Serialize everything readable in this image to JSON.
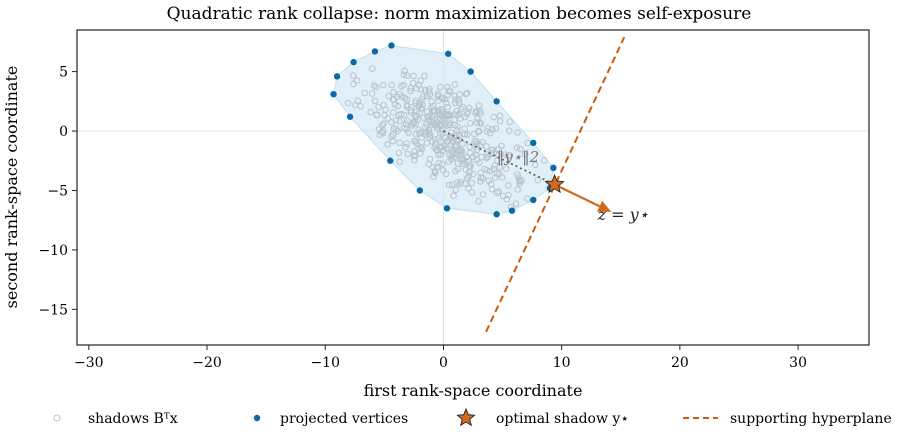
{
  "chart_data": {
    "type": "scatter",
    "title": "Quadratic rank collapse: norm maximization becomes self-exposure",
    "xlabel": "first rank-space coordinate",
    "ylabel": "second rank-space coordinate",
    "xlim": [
      -31,
      36
    ],
    "ylim": [
      -18,
      8.5
    ],
    "xticks": [
      -30,
      -20,
      -10,
      0,
      10,
      20,
      30
    ],
    "yticks": [
      -15,
      -10,
      -5,
      0,
      5
    ],
    "xtick_labels": [
      "−30",
      "−20",
      "−10",
      "0",
      "10",
      "20",
      "30"
    ],
    "ytick_labels": [
      "−15",
      "−10",
      "−5",
      "0",
      "5"
    ],
    "grid": "zero lines only",
    "legend_placement": "bottom, outside plot",
    "colors": {
      "shadow_points": "#b8c4cc",
      "hull_fill": "#d6eaf5",
      "vertices": "#0a6aa8",
      "optimum": "#d2691e",
      "hyperplane": "#cc5a0a",
      "norm_line": "#666666"
    },
    "hull_vertices": [
      [
        -4.4,
        7.2
      ],
      [
        0.4,
        6.5
      ],
      [
        2.3,
        5.0
      ],
      [
        4.5,
        2.5
      ],
      [
        7.6,
        -1.0
      ],
      [
        9.3,
        -3.1
      ],
      [
        9.0,
        -4.8
      ],
      [
        7.6,
        -5.8
      ],
      [
        5.8,
        -6.7
      ],
      [
        4.5,
        -7.0
      ],
      [
        0.3,
        -6.5
      ],
      [
        -2.0,
        -5.0
      ],
      [
        -4.5,
        -2.5
      ],
      [
        -7.9,
        1.2
      ],
      [
        -9.3,
        3.1
      ],
      [
        -9.0,
        4.6
      ],
      [
        -7.6,
        5.8
      ],
      [
        -5.8,
        6.7
      ]
    ],
    "optimal_shadow": [
      9.4,
      -4.5
    ],
    "optimal_label": "‖y⋆‖2",
    "direction_arrow": {
      "from": [
        9.4,
        -4.5
      ],
      "to": [
        14.2,
        -6.8
      ]
    },
    "direction_label": "z = y⋆",
    "hyperplane_segment": {
      "from": [
        3.6,
        -16.9
      ],
      "to": [
        15.3,
        7.9
      ]
    },
    "shadow_cloud": {
      "n": 420,
      "description": "many small hollow circles filling the hull"
    }
  },
  "legend": [
    {
      "label": "shadows Bᵀx",
      "key": "shadows"
    },
    {
      "label": "projected vertices",
      "key": "vertices"
    },
    {
      "label": "optimal shadow y⋆",
      "key": "optimum"
    },
    {
      "label": "supporting hyperplane",
      "key": "hyperplane"
    }
  ]
}
